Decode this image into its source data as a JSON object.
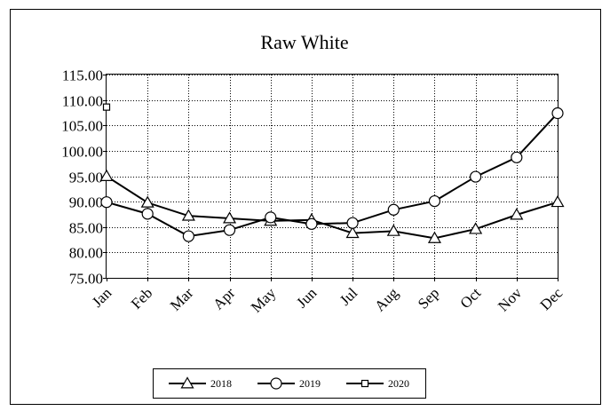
{
  "chart_data": {
    "type": "line",
    "title": "Raw White",
    "xlabel": "",
    "ylabel": "",
    "categories": [
      "Jan",
      "Feb",
      "Mar",
      "Apr",
      "May",
      "Jun",
      "Jul",
      "Aug",
      "Sep",
      "Oct",
      "Nov",
      "Dec"
    ],
    "ylim": [
      75.0,
      115.0
    ],
    "yticks": [
      "75.00",
      "80.00",
      "85.00",
      "90.00",
      "95.00",
      "100.00",
      "105.00",
      "110.00",
      "115.00"
    ],
    "grid": true,
    "legend_position": "bottom",
    "series": [
      {
        "name": "2018",
        "marker": "triangle",
        "values": [
          95.0,
          89.8,
          87.2,
          86.7,
          86.2,
          86.4,
          83.8,
          84.2,
          82.8,
          84.6,
          87.4,
          89.9
        ]
      },
      {
        "name": "2019",
        "marker": "circle",
        "values": [
          89.9,
          87.6,
          83.2,
          84.4,
          86.9,
          85.6,
          85.8,
          88.4,
          90.1,
          94.9,
          98.7,
          107.4
        ]
      },
      {
        "name": "2020",
        "marker": "square",
        "values": [
          108.6,
          null,
          null,
          null,
          null,
          null,
          null,
          null,
          null,
          null,
          null,
          null
        ]
      }
    ]
  }
}
